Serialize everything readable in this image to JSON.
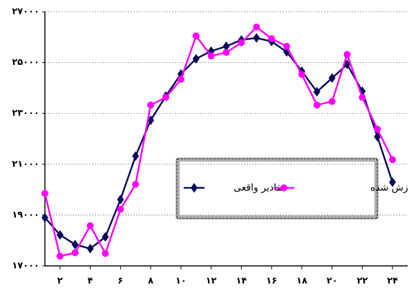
{
  "chart_data": {
    "type": "line",
    "x": [
      1,
      2,
      3,
      4,
      5,
      6,
      7,
      8,
      9,
      10,
      11,
      12,
      13,
      14,
      15,
      16,
      17,
      18,
      19,
      20,
      21,
      22,
      23,
      24
    ],
    "series": [
      {
        "name": "مقادیر واقعی",
        "color": "#0a0a5a",
        "marker": "diamond",
        "values": [
          18900,
          18220,
          17840,
          17680,
          18140,
          19610,
          21320,
          22730,
          23680,
          24550,
          25150,
          25450,
          25640,
          25890,
          25970,
          25830,
          25420,
          24660,
          23850,
          24390,
          24930,
          23870,
          22080,
          20290
        ]
      },
      {
        "name": "مقادیر برازش شده",
        "color": "#ff00ff",
        "marker": "circle",
        "values": [
          19850,
          17380,
          17520,
          18580,
          17490,
          19230,
          20210,
          23330,
          23630,
          24340,
          26050,
          25260,
          25400,
          25780,
          26400,
          25940,
          25640,
          24530,
          23330,
          23470,
          25320,
          23630,
          22380,
          21180
        ]
      }
    ],
    "xlim": [
      1,
      25
    ],
    "xticks": [
      {
        "value": 2,
        "label": "۲"
      },
      {
        "value": 4,
        "label": "۴"
      },
      {
        "value": 6,
        "label": "۶"
      },
      {
        "value": 8,
        "label": "۸"
      },
      {
        "value": 10,
        "label": "۱۰"
      },
      {
        "value": 12,
        "label": "۱۲"
      },
      {
        "value": 14,
        "label": "۱۴"
      },
      {
        "value": 16,
        "label": "۱۶"
      },
      {
        "value": 18,
        "label": "۱۸"
      },
      {
        "value": 20,
        "label": "۲۰"
      },
      {
        "value": 22,
        "label": "۲۲"
      },
      {
        "value": 24,
        "label": "۲۴"
      }
    ],
    "ylim": [
      17000,
      27000
    ],
    "yticks": [
      {
        "value": 17000,
        "label": "۱۷۰۰۰"
      },
      {
        "value": 19000,
        "label": "۱۹۰۰۰"
      },
      {
        "value": 21000,
        "label": "۲۱۰۰۰"
      },
      {
        "value": 23000,
        "label": "۲۳۰۰۰"
      },
      {
        "value": 25000,
        "label": "۲۵۰۰۰"
      },
      {
        "value": 27000,
        "label": "۲۷۰۰۰"
      }
    ],
    "grid": true
  }
}
